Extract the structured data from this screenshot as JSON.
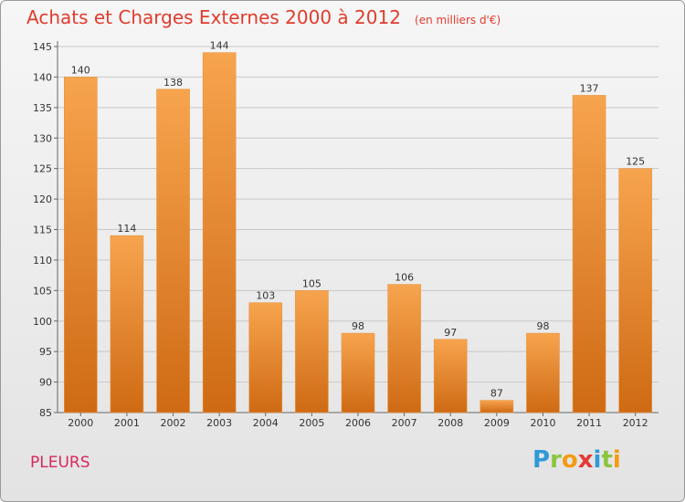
{
  "header": {
    "title": "Achats et Charges Externes 2000 à 2012",
    "unit": "(en milliers d'€)"
  },
  "footer": {
    "commune": "PLEURS",
    "logo_letters": [
      {
        "char": "P",
        "color": "#2e9bd6"
      },
      {
        "char": "r",
        "color": "#8bc53f"
      },
      {
        "char": "o",
        "color": "#f39c12"
      },
      {
        "char": "x",
        "color": "#e53935"
      },
      {
        "char": "i",
        "color": "#2e9bd6"
      },
      {
        "char": "t",
        "color": "#8bc53f"
      },
      {
        "char": "i",
        "color": "#f39c12"
      }
    ]
  },
  "colors": {
    "bar_light": "#f7a44e",
    "bar_dark": "#cf6a14",
    "title": "#e03c2d",
    "grid": "#c8c8c8"
  },
  "chart_data": {
    "type": "bar",
    "title": "Achats et Charges Externes 2000 à 2012",
    "subtitle": "(en milliers d'€)",
    "categories": [
      "2000",
      "2001",
      "2002",
      "2003",
      "2004",
      "2005",
      "2006",
      "2007",
      "2008",
      "2009",
      "2010",
      "2011",
      "2012"
    ],
    "values": [
      140,
      114,
      138,
      144,
      103,
      105,
      98,
      106,
      97,
      87,
      98,
      137,
      125
    ],
    "ylim": [
      85,
      145
    ],
    "yticks": [
      85,
      90,
      95,
      100,
      105,
      110,
      115,
      120,
      125,
      130,
      135,
      140,
      145
    ],
    "grid": true,
    "legend": "none"
  }
}
